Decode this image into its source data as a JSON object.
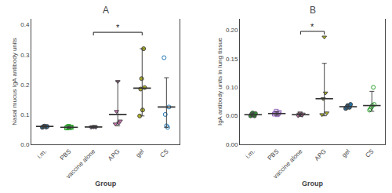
{
  "chart_data": [
    {
      "type": "dot",
      "title": "A",
      "xlabel": "Group",
      "ylabel": "Nasal mucus IgA antibody units",
      "categories": [
        "i.m.",
        "PBS",
        "vaccine alone",
        "APG",
        "gel",
        "CS"
      ],
      "groups": [
        {
          "values": [
            0.057,
            0.059,
            0.061,
            0.06,
            0.058,
            0.06
          ],
          "marker": "filled_circle",
          "median": 0.06,
          "error_low": 0.004,
          "error_high": 0.004
        },
        {
          "values": [
            0.055,
            0.058,
            0.06,
            0.056,
            0.058,
            0.057
          ],
          "marker": "open_square",
          "median": 0.057,
          "error_low": 0.003,
          "error_high": 0.003
        },
        {
          "values": [
            0.057,
            0.059,
            0.058,
            0.06,
            0.057
          ],
          "marker": "filled_triangle_down",
          "median": 0.058,
          "error_low": 0.003,
          "error_high": 0.003
        },
        {
          "values": [
            0.068,
            0.11,
            0.21,
            0.072,
            0.078
          ],
          "marker": "filled_triangle_down",
          "median": 0.1,
          "error_low": 0.038,
          "error_high": 0.112
        },
        {
          "values": [
            0.095,
            0.185,
            0.22,
            0.115,
            0.32,
            0.19
          ],
          "marker": "filled_circle",
          "median": 0.188,
          "error_low": 0.093,
          "error_high": 0.132
        },
        {
          "values": [
            0.29,
            0.1,
            0.062,
            0.057,
            0.125
          ],
          "marker": "open_circle",
          "median": 0.125,
          "error_low": 0.068,
          "error_high": 0.098
        }
      ],
      "annotations": [
        {
          "text": "*",
          "x": [
            "vaccine alone",
            "gel"
          ],
          "y": 0.375
        }
      ],
      "ylim": [
        0,
        0.42
      ],
      "yticks": [
        {
          "value": 0,
          "label": "0.0"
        },
        0.1,
        0.2,
        0.3,
        0.4
      ],
      "grid": false
    },
    {
      "type": "dot",
      "title": "B",
      "xlabel": "Group",
      "ylabel": "IgA antibody units in lung tissue",
      "categories": [
        "i.m.",
        "PBS",
        "vaccine alone",
        "APG",
        "gel",
        "CS"
      ],
      "groups": [
        {
          "values": [
            0.05,
            0.053,
            0.055,
            0.052,
            0.05,
            0.054
          ],
          "marker": "filled_circle",
          "median": 0.052,
          "error_low": 0.003,
          "error_high": 0.003
        },
        {
          "values": [
            0.053,
            0.055,
            0.058,
            0.052,
            0.054,
            0.056
          ],
          "marker": "open_square",
          "median": 0.054,
          "error_low": 0.003,
          "error_high": 0.003
        },
        {
          "values": [
            0.05,
            0.053,
            0.055,
            0.052,
            0.051,
            0.053
          ],
          "marker": "filled_triangle_down",
          "median": 0.052,
          "error_low": 0.003,
          "error_high": 0.003
        },
        {
          "values": [
            0.052,
            0.08,
            0.188,
            0.09,
            0.055
          ],
          "marker": "filled_triangle_down",
          "median": 0.08,
          "error_low": 0.03,
          "error_high": 0.062
        },
        {
          "values": [
            0.063,
            0.065,
            0.068,
            0.067,
            0.065,
            0.07
          ],
          "marker": "filled_circle",
          "median": 0.066,
          "error_low": 0.004,
          "error_high": 0.004
        },
        {
          "values": [
            0.06,
            0.062,
            0.065,
            0.068,
            0.1,
            0.07
          ],
          "marker": "open_circle",
          "median": 0.068,
          "error_low": 0.01,
          "error_high": 0.025
        }
      ],
      "annotations": [
        {
          "text": "*",
          "x": [
            "vaccine alone",
            "APG"
          ],
          "y": 0.198
        }
      ],
      "ylim": [
        0,
        0.22
      ],
      "yticks": [
        {
          "value": 0,
          "label": "0.00"
        },
        0.05,
        {
          "value": 0.1,
          "label": "0.10"
        },
        0.15,
        {
          "value": 0.2,
          "label": "0.20"
        }
      ],
      "grid": false
    }
  ]
}
